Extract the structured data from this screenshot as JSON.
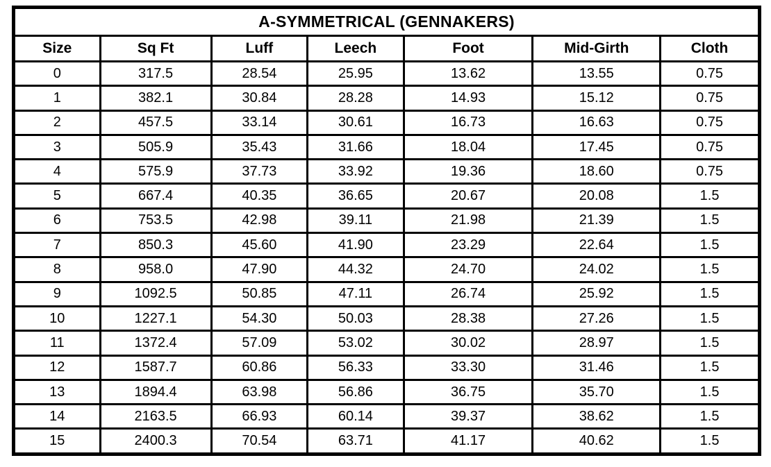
{
  "chart_data": {
    "type": "table",
    "title": "A-SYMMETRICAL (GENNAKERS)",
    "columns": [
      "Size",
      "Sq Ft",
      "Luff",
      "Leech",
      "Foot",
      "Mid-Girth",
      "Cloth"
    ],
    "rows": [
      [
        "0",
        "317.5",
        "28.54",
        "25.95",
        "13.62",
        "13.55",
        "0.75"
      ],
      [
        "1",
        "382.1",
        "30.84",
        "28.28",
        "14.93",
        "15.12",
        "0.75"
      ],
      [
        "2",
        "457.5",
        "33.14",
        "30.61",
        "16.73",
        "16.63",
        "0.75"
      ],
      [
        "3",
        "505.9",
        "35.43",
        "31.66",
        "18.04",
        "17.45",
        "0.75"
      ],
      [
        "4",
        "575.9",
        "37.73",
        "33.92",
        "19.36",
        "18.60",
        "0.75"
      ],
      [
        "5",
        "667.4",
        "40.35",
        "36.65",
        "20.67",
        "20.08",
        "1.5"
      ],
      [
        "6",
        "753.5",
        "42.98",
        "39.11",
        "21.98",
        "21.39",
        "1.5"
      ],
      [
        "7",
        "850.3",
        "45.60",
        "41.90",
        "23.29",
        "22.64",
        "1.5"
      ],
      [
        "8",
        "958.0",
        "47.90",
        "44.32",
        "24.70",
        "24.02",
        "1.5"
      ],
      [
        "9",
        "1092.5",
        "50.85",
        "47.11",
        "26.74",
        "25.92",
        "1.5"
      ],
      [
        "10",
        "1227.1",
        "54.30",
        "50.03",
        "28.38",
        "27.26",
        "1.5"
      ],
      [
        "11",
        "1372.4",
        "57.09",
        "53.02",
        "30.02",
        "28.97",
        "1.5"
      ],
      [
        "12",
        "1587.7",
        "60.86",
        "56.33",
        "33.30",
        "31.46",
        "1.5"
      ],
      [
        "13",
        "1894.4",
        "63.98",
        "56.86",
        "36.75",
        "35.70",
        "1.5"
      ],
      [
        "14",
        "2163.5",
        "66.93",
        "60.14",
        "39.37",
        "38.62",
        "1.5"
      ],
      [
        "15",
        "2400.3",
        "70.54",
        "63.71",
        "41.17",
        "40.62",
        "1.5"
      ]
    ],
    "layout": {
      "title_position": "top-banner",
      "grid": "on"
    },
    "colors": {
      "title_bg": "#FF0000",
      "title_text": "#FFFFFF",
      "border": "#000000",
      "cell_bg": "#FFFFFF",
      "cell_text": "#000000"
    }
  }
}
